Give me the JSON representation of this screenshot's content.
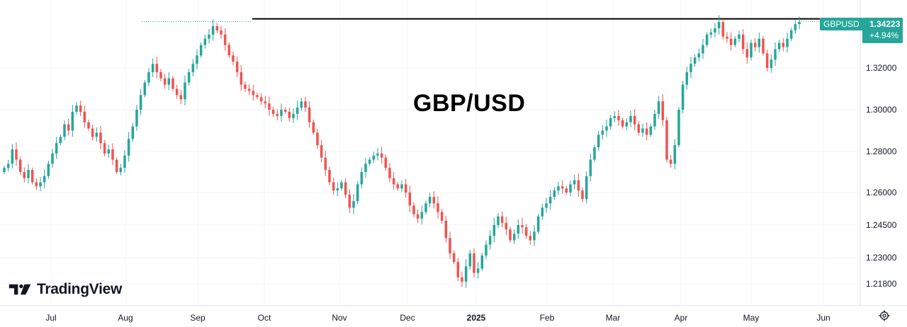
{
  "chart_data": {
    "type": "candlestick",
    "symbol": "GBPUSD",
    "last_price": "1.34223",
    "change_pct": "+4.94%",
    "watermark_title": "GBP/USD",
    "y_ticks": [
      "1.32000",
      "1.30000",
      "1.28000",
      "1.26000",
      "1.24500",
      "1.23000",
      "1.21800"
    ],
    "x_ticks": [
      {
        "label": "Jul",
        "bold": false
      },
      {
        "label": "Aug",
        "bold": false
      },
      {
        "label": "Sep",
        "bold": false
      },
      {
        "label": "Oct",
        "bold": false
      },
      {
        "label": "Nov",
        "bold": false
      },
      {
        "label": "Dec",
        "bold": false
      },
      {
        "label": "2025",
        "bold": true
      },
      {
        "label": "Feb",
        "bold": false
      },
      {
        "label": "Mar",
        "bold": false
      },
      {
        "label": "Apr",
        "bold": false
      },
      {
        "label": "May",
        "bold": false
      },
      {
        "label": "Jun",
        "bold": false
      }
    ],
    "resistance_level": 1.3435,
    "series_close": [
      1.272,
      1.274,
      1.281,
      1.276,
      1.27,
      1.267,
      1.271,
      1.265,
      1.263,
      1.265,
      1.268,
      1.274,
      1.279,
      1.284,
      1.287,
      1.293,
      1.29,
      1.299,
      1.302,
      1.299,
      1.294,
      1.291,
      1.287,
      1.289,
      1.284,
      1.279,
      1.281,
      1.276,
      1.27,
      1.272,
      1.278,
      1.286,
      1.292,
      1.3,
      1.307,
      1.313,
      1.318,
      1.322,
      1.318,
      1.315,
      1.312,
      1.315,
      1.31,
      1.307,
      1.305,
      1.313,
      1.318,
      1.322,
      1.326,
      1.331,
      1.334,
      1.336,
      1.34,
      1.338,
      1.336,
      1.331,
      1.326,
      1.323,
      1.318,
      1.312,
      1.31,
      1.309,
      1.307,
      1.306,
      1.304,
      1.303,
      1.3,
      1.298,
      1.297,
      1.3,
      1.299,
      1.296,
      1.298,
      1.301,
      1.304,
      1.301,
      1.294,
      1.289,
      1.283,
      1.277,
      1.271,
      1.265,
      1.261,
      1.262,
      1.265,
      1.259,
      1.253,
      1.256,
      1.264,
      1.27,
      1.274,
      1.276,
      1.278,
      1.279,
      1.277,
      1.272,
      1.267,
      1.264,
      1.262,
      1.264,
      1.26,
      1.254,
      1.25,
      1.248,
      1.251,
      1.255,
      1.258,
      1.255,
      1.251,
      1.247,
      1.239,
      1.232,
      1.228,
      1.221,
      1.219,
      1.226,
      1.232,
      1.223,
      1.225,
      1.231,
      1.236,
      1.24,
      1.245,
      1.249,
      1.246,
      1.243,
      1.238,
      1.241,
      1.245,
      1.244,
      1.24,
      1.238,
      1.242,
      1.249,
      1.253,
      1.255,
      1.258,
      1.261,
      1.263,
      1.262,
      1.26,
      1.264,
      1.266,
      1.261,
      1.257,
      1.268,
      1.276,
      1.282,
      1.288,
      1.29,
      1.292,
      1.296,
      1.297,
      1.295,
      1.292,
      1.294,
      1.297,
      1.293,
      1.289,
      1.291,
      1.288,
      1.292,
      1.298,
      1.304,
      1.295,
      1.276,
      1.274,
      1.283,
      1.3,
      1.312,
      1.318,
      1.322,
      1.325,
      1.327,
      1.331,
      1.336,
      1.337,
      1.339,
      1.342,
      1.335,
      1.334,
      1.331,
      1.334,
      1.336,
      1.329,
      1.325,
      1.332,
      1.33,
      1.334,
      1.327,
      1.32,
      1.324,
      1.329,
      1.332,
      1.33,
      1.334,
      1.338,
      1.341,
      1.342
    ]
  }
}
